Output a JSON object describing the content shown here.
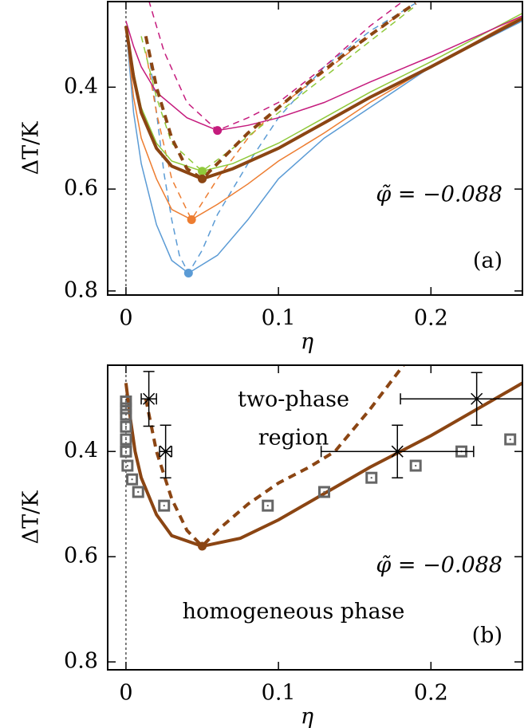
{
  "chart_data": [
    {
      "type": "line",
      "panel_label": "(a)",
      "annotation": "φ̃ = −0.088",
      "xlabel": "η",
      "ylabel": "ΔT/K",
      "xlim": [
        -0.012,
        0.26
      ],
      "ylim": [
        0.232,
        0.808
      ],
      "y_inverted": true,
      "xticks": [
        0,
        0.1,
        0.2
      ],
      "yticks": [
        0.4,
        0.6,
        0.8
      ],
      "vline": 0,
      "series": [
        {
          "color": "#5b9bd5",
          "style": "solid",
          "width": 1.5,
          "x": [
            0,
            0.005,
            0.01,
            0.02,
            0.03,
            0.041,
            0.06,
            0.08,
            0.1,
            0.13,
            0.16,
            0.2,
            0.26
          ],
          "values": [
            0.28,
            0.45,
            0.55,
            0.67,
            0.74,
            0.765,
            0.73,
            0.66,
            0.58,
            0.5,
            0.44,
            0.36,
            0.27
          ]
        },
        {
          "color": "#5b9bd5",
          "style": "dashed",
          "width": 1.5,
          "x": [
            0.015,
            0.02,
            0.025,
            0.03,
            0.035,
            0.041,
            0.05,
            0.06,
            0.08,
            0.1,
            0.13,
            0.16,
            0.19
          ],
          "values": [
            0.33,
            0.45,
            0.57,
            0.66,
            0.73,
            0.765,
            0.72,
            0.65,
            0.55,
            0.46,
            0.36,
            0.29,
            0.235
          ]
        },
        {
          "color": "#ed7d31",
          "style": "solid",
          "width": 1.5,
          "x": [
            0,
            0.005,
            0.01,
            0.02,
            0.03,
            0.043,
            0.06,
            0.08,
            0.1,
            0.13,
            0.16,
            0.2,
            0.26
          ],
          "values": [
            0.28,
            0.42,
            0.5,
            0.58,
            0.64,
            0.66,
            0.63,
            0.59,
            0.545,
            0.49,
            0.43,
            0.36,
            0.26
          ]
        },
        {
          "color": "#ed7d31",
          "style": "dashed",
          "width": 1.5,
          "x": [
            0.013,
            0.02,
            0.03,
            0.043,
            0.06,
            0.08,
            0.1,
            0.13,
            0.16,
            0.18
          ],
          "values": [
            0.33,
            0.45,
            0.58,
            0.66,
            0.58,
            0.5,
            0.44,
            0.37,
            0.3,
            0.255
          ]
        },
        {
          "color": "#8fc93a",
          "style": "solid",
          "width": 1.5,
          "x": [
            0,
            0.005,
            0.01,
            0.02,
            0.03,
            0.05,
            0.07,
            0.1,
            0.13,
            0.16,
            0.2,
            0.26
          ],
          "values": [
            0.28,
            0.37,
            0.44,
            0.51,
            0.545,
            0.565,
            0.55,
            0.51,
            0.46,
            0.41,
            0.35,
            0.255
          ]
        },
        {
          "color": "#8fc93a",
          "style": "dashed",
          "width": 1.5,
          "x": [
            0.01,
            0.02,
            0.03,
            0.05,
            0.07,
            0.1,
            0.13,
            0.16,
            0.19
          ],
          "values": [
            0.3,
            0.42,
            0.51,
            0.565,
            0.52,
            0.45,
            0.38,
            0.31,
            0.24
          ]
        },
        {
          "color": "#c51b7d",
          "style": "solid",
          "width": 1.5,
          "x": [
            0,
            0.005,
            0.01,
            0.02,
            0.04,
            0.06,
            0.08,
            0.1,
            0.13,
            0.16,
            0.2,
            0.26
          ],
          "values": [
            0.27,
            0.32,
            0.36,
            0.41,
            0.46,
            0.485,
            0.475,
            0.46,
            0.43,
            0.39,
            0.34,
            0.26
          ]
        },
        {
          "color": "#c51b7d",
          "style": "dashed",
          "width": 1.5,
          "x": [
            0.015,
            0.025,
            0.04,
            0.06,
            0.08,
            0.1,
            0.13,
            0.16,
            0.18
          ],
          "values": [
            0.23,
            0.33,
            0.43,
            0.485,
            0.46,
            0.43,
            0.36,
            0.28,
            0.235
          ]
        },
        {
          "color": "#8b4513",
          "style": "solid",
          "width": 4,
          "x": [
            0,
            0.005,
            0.01,
            0.02,
            0.03,
            0.05,
            0.07,
            0.1,
            0.13,
            0.16,
            0.2,
            0.26
          ],
          "values": [
            0.28,
            0.38,
            0.45,
            0.52,
            0.555,
            0.58,
            0.56,
            0.52,
            0.47,
            0.42,
            0.36,
            0.265
          ]
        },
        {
          "color": "#8b4513",
          "style": "dashed",
          "width": 4,
          "x": [
            0.013,
            0.02,
            0.03,
            0.04,
            0.05,
            0.06,
            0.08,
            0.1,
            0.12,
            0.15,
            0.18,
            0.19
          ],
          "values": [
            0.3,
            0.4,
            0.5,
            0.56,
            0.58,
            0.55,
            0.49,
            0.44,
            0.39,
            0.32,
            0.255,
            0.235
          ]
        },
        {
          "marker": "dot",
          "color": "#5b9bd5",
          "x": [
            0.041
          ],
          "values": [
            0.765
          ]
        },
        {
          "marker": "dot",
          "color": "#ed7d31",
          "x": [
            0.043
          ],
          "values": [
            0.66
          ]
        },
        {
          "marker": "dot",
          "color": "#8fc93a",
          "x": [
            0.05
          ],
          "values": [
            0.565
          ]
        },
        {
          "marker": "dot",
          "color": "#c51b7d",
          "x": [
            0.06
          ],
          "values": [
            0.485
          ]
        },
        {
          "marker": "dot",
          "color": "#8b4513",
          "x": [
            0.05
          ],
          "values": [
            0.58
          ]
        }
      ]
    },
    {
      "type": "line",
      "panel_label": "(b)",
      "annotation": "φ̃ = −0.088",
      "region_labels": [
        "two-phase",
        "region",
        "homogeneous phase"
      ],
      "xlabel": "η",
      "ylabel": "ΔT/K",
      "xlim": [
        -0.012,
        0.26
      ],
      "ylim": [
        0.236,
        0.815
      ],
      "y_inverted": true,
      "xticks": [
        0,
        0.1,
        0.2
      ],
      "yticks": [
        0.4,
        0.6,
        0.8
      ],
      "vline": 0,
      "series": [
        {
          "color": "#8b4513",
          "style": "solid",
          "width": 4,
          "x": [
            0,
            0.003,
            0.006,
            0.01,
            0.02,
            0.03,
            0.05,
            0.075,
            0.1,
            0.13,
            0.16,
            0.2,
            0.26
          ],
          "values": [
            0.27,
            0.34,
            0.4,
            0.45,
            0.52,
            0.56,
            0.58,
            0.565,
            0.53,
            0.48,
            0.43,
            0.37,
            0.27
          ]
        },
        {
          "color": "#8b4513",
          "style": "dashed",
          "width": 4,
          "x": [
            0.013,
            0.02,
            0.03,
            0.04,
            0.05,
            0.06,
            0.08,
            0.1,
            0.12,
            0.137,
            0.16,
            0.182
          ],
          "values": [
            0.3,
            0.4,
            0.49,
            0.55,
            0.58,
            0.55,
            0.5,
            0.46,
            0.43,
            0.4,
            0.32,
            0.236
          ]
        },
        {
          "marker": "dot",
          "color": "#8b4513",
          "x": [
            0.05
          ],
          "values": [
            0.58
          ]
        },
        {
          "marker": "square",
          "color": "#666666",
          "x": [
            0,
            0,
            0,
            0,
            0,
            0,
            0,
            0.001,
            0.004,
            0.008,
            0.025,
            0.093,
            0.13,
            0.161,
            0.19,
            0.22,
            0.252
          ],
          "values": [
            0.305,
            0.318,
            0.33,
            0.353,
            0.377,
            0.4,
            0.4,
            0.427,
            0.453,
            0.477,
            0.503,
            0.503,
            0.477,
            0.45,
            0.427,
            0.4,
            0.377
          ]
        },
        {
          "marker": "cross",
          "color": "#000000",
          "x": [
            0.015,
            0.026,
            0.178,
            0.23
          ],
          "values": [
            0.3,
            0.4,
            0.4,
            0.3
          ],
          "xerr": [
            0.005,
            0.004,
            0.05,
            0.05
          ],
          "yerr": [
            0.052,
            0.05,
            0.05,
            0.05
          ]
        }
      ]
    }
  ]
}
